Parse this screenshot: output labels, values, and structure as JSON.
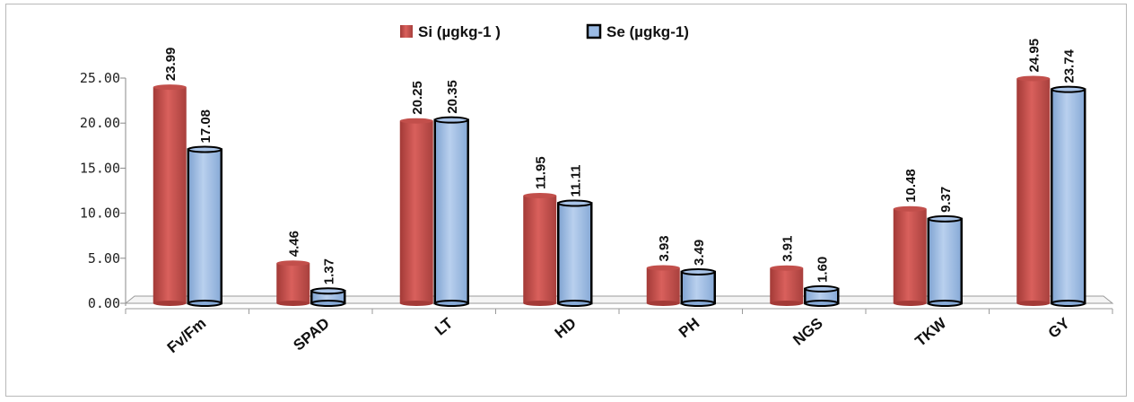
{
  "chart_data": {
    "type": "bar",
    "categories": [
      "Fv/Fm",
      "SPAD",
      "LT",
      "HD",
      "PH",
      "NGS",
      "TKW",
      "GY"
    ],
    "series": [
      {
        "name": "Si (µgkg-1 )",
        "values": [
          23.99,
          4.46,
          20.25,
          11.95,
          3.93,
          3.91,
          10.48,
          24.95
        ],
        "labels": [
          "23.99",
          "4.46",
          "20.25",
          "11.95",
          "3.93",
          "3.91",
          "10.48",
          "24.95"
        ],
        "color": "#c0504d"
      },
      {
        "name": "Se (µgkg-1)",
        "values": [
          17.08,
          1.37,
          20.35,
          11.11,
          3.49,
          1.6,
          9.37,
          23.74
        ],
        "labels": [
          "17.08",
          "1.37",
          "20.35",
          "11.11",
          "3.49",
          "1.60",
          "9.37",
          "23.74"
        ],
        "color": "#9bbbe4"
      }
    ],
    "y_ticks": [
      "0.00",
      "5.00",
      "10.00",
      "15.00",
      "20.00",
      "25.00"
    ],
    "ylim": [
      0,
      25
    ],
    "grid": false,
    "legend_position": "top-center"
  }
}
